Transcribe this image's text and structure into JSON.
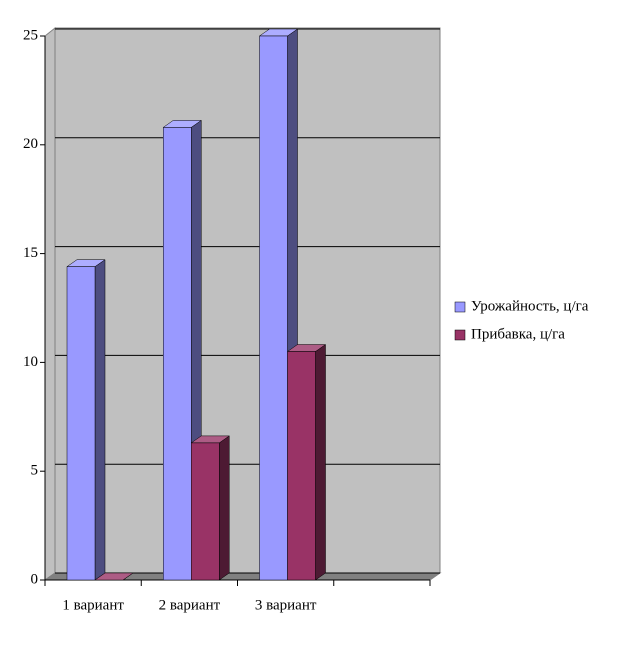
{
  "chart_data": {
    "type": "bar3d",
    "categories": [
      "1 вариант",
      "2 вариант",
      "3 вариант",
      null
    ],
    "series": [
      {
        "name": "Урожайность, ц/га",
        "color": "#9999ff",
        "values": [
          14.4,
          20.8,
          25,
          null
        ]
      },
      {
        "name": "Прибавка, ц/га",
        "color": "#993366",
        "values": [
          0,
          6.3,
          10.5,
          null
        ]
      }
    ],
    "ylim": [
      0,
      25
    ],
    "yticks": [
      0,
      5,
      10,
      15,
      20,
      25
    ],
    "grid": true,
    "legend": "right"
  }
}
